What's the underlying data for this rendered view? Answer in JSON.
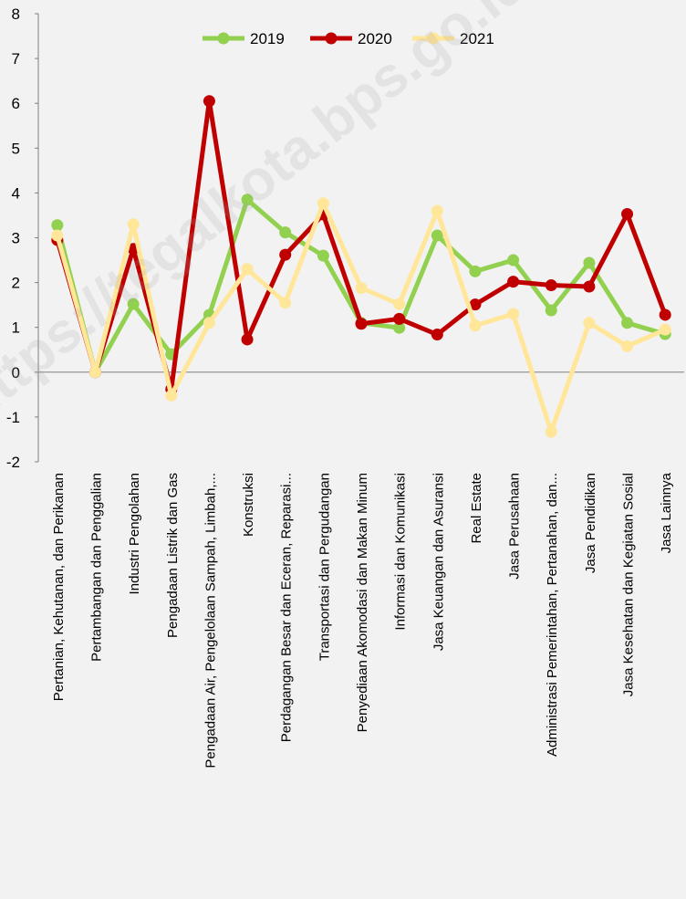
{
  "watermark": "https://tegalkota.bps.go.id",
  "chart_data": {
    "type": "line",
    "title": "",
    "xlabel": "",
    "ylabel": "",
    "ylim": [
      -2,
      8
    ],
    "yticks": [
      "-2",
      "-1",
      "0",
      "1",
      "2",
      "3",
      "4",
      "5",
      "6",
      "7",
      "8"
    ],
    "grid": false,
    "legend_position": "top-center",
    "categories": [
      "Pertanian, Kehutanan, dan Perikanan",
      "Pertambangan dan Penggalian",
      "Industri Pengolahan",
      "Pengadaan Listrik dan Gas",
      "Pengadaan Air, Pengelolaan Sampah, Limbah,...",
      "Konstruksi",
      "Perdagangan Besar dan Eceran, Reparasi...",
      "Transportasi dan Pergudangan",
      "Penyediaan Akomodasi dan Makan Minum",
      "Informasi dan Komunikasi",
      "Jasa Keuangan dan Asuransi",
      "Real Estate",
      "Jasa Perusahaan",
      "Administrasi Pemerintahan, Pertanahan, dan...",
      "Jasa Pendidikan",
      "Jasa Kesehatan dan Kegiatan Sosial",
      "Jasa Lainnya"
    ],
    "series": [
      {
        "name": "2019",
        "color": "#92d050",
        "values": [
          3.28,
          0.0,
          1.52,
          0.4,
          1.28,
          3.85,
          3.12,
          2.6,
          1.1,
          0.99,
          3.05,
          2.25,
          2.5,
          1.38,
          2.44,
          1.1,
          0.85
        ]
      },
      {
        "name": "2020",
        "color": "#c00000",
        "values": [
          2.95,
          0.0,
          2.75,
          -0.38,
          6.05,
          0.73,
          2.62,
          3.52,
          1.08,
          1.19,
          0.84,
          1.51,
          2.02,
          1.94,
          1.91,
          3.53,
          1.28
        ]
      },
      {
        "name": "2021",
        "color": "#ffe699",
        "values": [
          3.05,
          0.0,
          3.3,
          -0.52,
          1.1,
          2.3,
          1.55,
          3.77,
          1.88,
          1.52,
          3.6,
          1.04,
          1.3,
          -1.33,
          1.1,
          0.58,
          0.95
        ]
      }
    ]
  }
}
